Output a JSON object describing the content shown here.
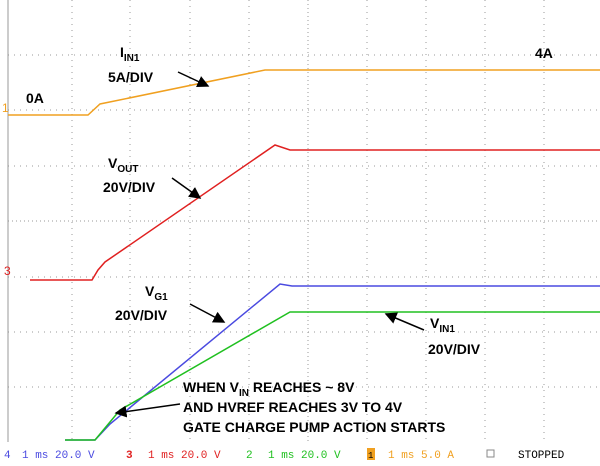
{
  "annotations": {
    "iin1": {
      "main": "I",
      "sub": "IN1",
      "scale": "5A/DIV"
    },
    "level_high": "4A",
    "level_low": "0A",
    "vout": {
      "main": "V",
      "sub": "OUT",
      "scale": "20V/DIV"
    },
    "vg1": {
      "main": "V",
      "sub": "G1",
      "scale": "20V/DIV"
    },
    "vin1": {
      "main": "V",
      "sub": "IN1",
      "scale": "20V/DIV"
    },
    "note": {
      "line1_pre": "WHEN V",
      "line1_sub": "IN",
      "line1_post": " REACHES ~ 8V",
      "line2": "AND HVREF REACHES 3V TO 4V",
      "line3": "GATE CHARGE PUMP ACTION STARTS"
    }
  },
  "markers": {
    "ch1": "1",
    "ch3": "3"
  },
  "status": {
    "ch4": "4",
    "ch4_set": "1 ms 20.0 V",
    "ch3": "3",
    "ch3_set": "1 ms 20.0 V",
    "ch2": "2",
    "ch2_set": "1 ms 20.0 V",
    "ch1": "1",
    "ch1_set": "1 ms 5.0 A",
    "state": "STOPPED"
  }
}
